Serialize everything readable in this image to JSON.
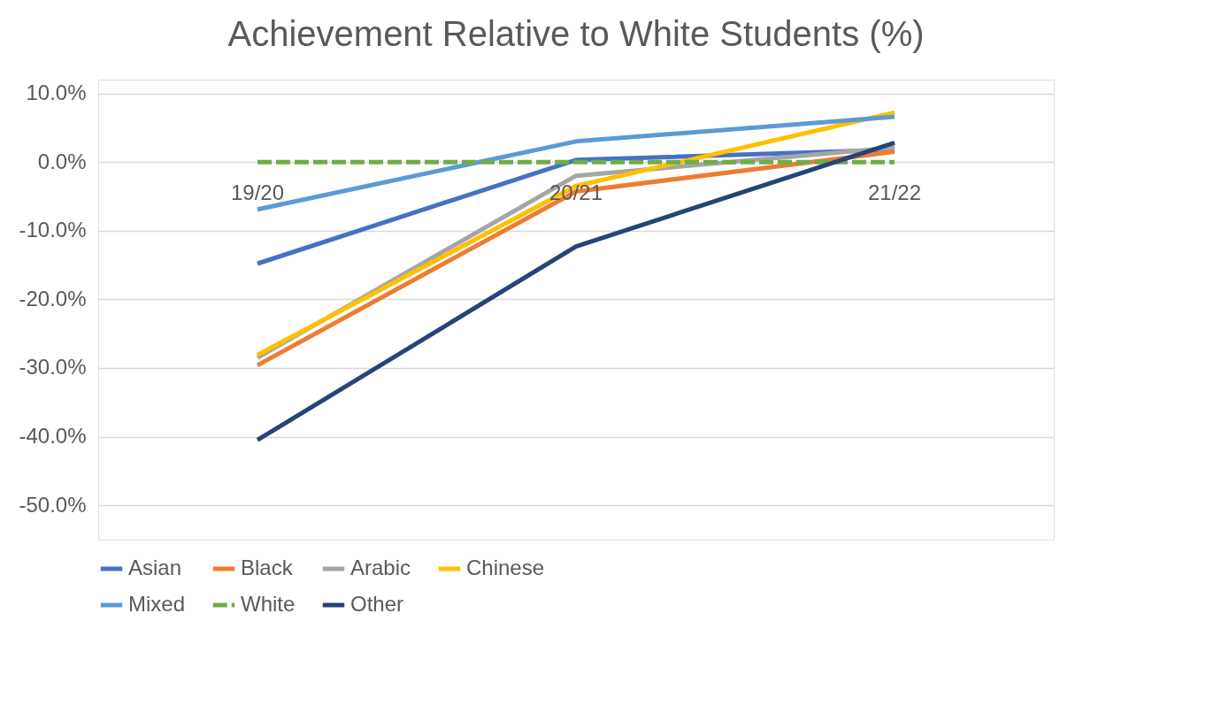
{
  "chart_data": {
    "type": "line",
    "title": "Achievement Relative to White Students (%)",
    "categories": [
      "19/20",
      "20/21",
      "21/22"
    ],
    "series": [
      {
        "name": "Asian",
        "color": "#4472c4",
        "values": [
          -14.8,
          0.3,
          1.8
        ]
      },
      {
        "name": "Black",
        "color": "#ed7d31",
        "values": [
          -29.6,
          -4.3,
          1.5
        ]
      },
      {
        "name": "Arabic",
        "color": "#a5a5a5",
        "values": [
          -28.5,
          -2.0,
          2.1
        ]
      },
      {
        "name": "Chinese",
        "color": "#ffc000",
        "values": [
          -28.1,
          -3.5,
          7.2
        ]
      },
      {
        "name": "Mixed",
        "color": "#5b9bd5",
        "values": [
          -6.9,
          3.0,
          6.6
        ]
      },
      {
        "name": "White",
        "color": "#70ad47",
        "values": [
          0,
          0,
          0
        ],
        "line_style": "dashed"
      },
      {
        "name": "Other",
        "color": "#264478",
        "values": [
          -40.5,
          -12.3,
          2.8
        ]
      }
    ],
    "ylim": [
      -55,
      12
    ],
    "yticks": [
      {
        "value": 10,
        "label": "10.0%"
      },
      {
        "value": 0,
        "label": "0.0%"
      },
      {
        "value": -10,
        "label": "-10.0%"
      },
      {
        "value": -20,
        "label": "-20.0%"
      },
      {
        "value": -30,
        "label": "-30.0%"
      },
      {
        "value": -40,
        "label": "-40.0%"
      },
      {
        "value": -50,
        "label": "-50.0%"
      }
    ],
    "grid": "y",
    "legend": "bottom",
    "marker": "none",
    "line_style": "solid"
  }
}
